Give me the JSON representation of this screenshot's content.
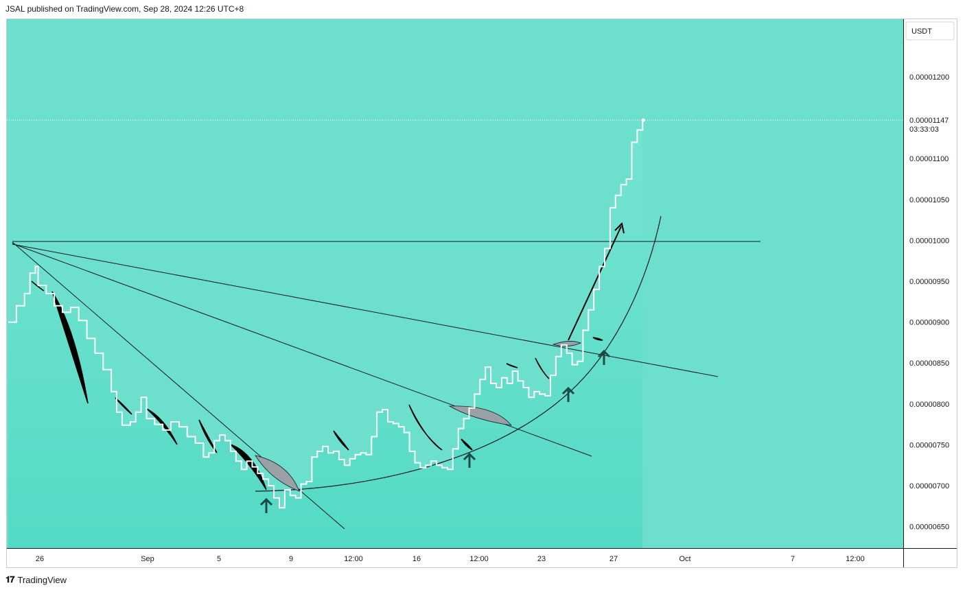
{
  "header": {
    "publisher": "JSAL",
    "text": "JSAL published on TradingView.com, Sep 28, 2024 12:26 UTC+8"
  },
  "footer": {
    "logo_text": "TradingView"
  },
  "chart_data": {
    "type": "line",
    "currency": "USDT",
    "last_price": "0.00001147",
    "countdown": "03:33:03",
    "ylim": [
      6e-06,
      1.23e-05
    ],
    "y_ticks": [
      "0.00001200",
      "0.00001100",
      "0.00001050",
      "0.00001000",
      "0.00000950",
      "0.00000900",
      "0.00000850",
      "0.00000800",
      "0.00000750",
      "0.00000700",
      "0.00000650"
    ],
    "x_ticks": [
      "26",
      "Sep",
      "5",
      "9",
      "12:00",
      "16",
      "12:00",
      "23",
      "27",
      "Oct",
      "7",
      "12:00"
    ],
    "series": [
      {
        "values": [
          [
            0,
            9e-06
          ],
          [
            3,
            9.2e-06
          ],
          [
            6,
            9.35e-06
          ],
          [
            8,
            9.6e-06
          ],
          [
            10,
            9.68e-06
          ],
          [
            11,
            9.45e-06
          ],
          [
            14,
            9.35e-06
          ],
          [
            17,
            9.2e-06
          ],
          [
            20,
            9.12e-06
          ],
          [
            23,
            9.18e-06
          ],
          [
            26,
            9.02e-06
          ],
          [
            29,
            8.8e-06
          ],
          [
            32,
            8.62e-06
          ],
          [
            35,
            8.42e-06
          ],
          [
            38,
            8.15e-06
          ],
          [
            40,
            7.9e-06
          ],
          [
            42,
            7.74e-06
          ],
          [
            45,
            7.78e-06
          ],
          [
            47,
            7.9e-06
          ],
          [
            49,
            8.08e-06
          ],
          [
            51,
            7.82e-06
          ],
          [
            54,
            7.75e-06
          ],
          [
            57,
            7.68e-06
          ],
          [
            60,
            7.78e-06
          ],
          [
            63,
            7.72e-06
          ],
          [
            66,
            7.6e-06
          ],
          [
            69,
            7.52e-06
          ],
          [
            72,
            7.35e-06
          ],
          [
            74,
            7.4e-06
          ],
          [
            76,
            7.55e-06
          ],
          [
            78,
            7.62e-06
          ],
          [
            80,
            7.55e-06
          ],
          [
            82,
            7.42e-06
          ],
          [
            84,
            7.3e-06
          ],
          [
            86,
            7.2e-06
          ],
          [
            88,
            7.3e-06
          ],
          [
            90,
            7.23e-06
          ],
          [
            92,
            7.15e-06
          ],
          [
            94,
            7.08e-06
          ],
          [
            96,
            7e-06
          ],
          [
            98,
            6.85e-06
          ],
          [
            100,
            6.73e-06
          ],
          [
            102,
            6.95e-06
          ],
          [
            104,
            6.88e-06
          ],
          [
            106,
            6.85e-06
          ],
          [
            108,
            7.02e-06
          ],
          [
            110,
            7.05e-06
          ],
          [
            112,
            7.35e-06
          ],
          [
            114,
            7.42e-06
          ],
          [
            116,
            7.48e-06
          ],
          [
            118,
            7.4e-06
          ],
          [
            120,
            7.42e-06
          ],
          [
            122,
            7.32e-06
          ],
          [
            124,
            7.25e-06
          ],
          [
            126,
            7.33e-06
          ],
          [
            128,
            7.38e-06
          ],
          [
            130,
            7.4e-06
          ],
          [
            132,
            7.38e-06
          ],
          [
            134,
            7.6e-06
          ],
          [
            136,
            7.9e-06
          ],
          [
            138,
            7.93e-06
          ],
          [
            140,
            7.78e-06
          ],
          [
            142,
            7.76e-06
          ],
          [
            144,
            7.72e-06
          ],
          [
            146,
            7.65e-06
          ],
          [
            148,
            7.42e-06
          ],
          [
            150,
            7.28e-06
          ],
          [
            152,
            7.22e-06
          ],
          [
            154,
            7.25e-06
          ],
          [
            156,
            7.3e-06
          ],
          [
            158,
            7.25e-06
          ],
          [
            160,
            7.22e-06
          ],
          [
            162,
            7.2e-06
          ],
          [
            164,
            7.45e-06
          ],
          [
            166,
            7.7e-06
          ],
          [
            168,
            7.82e-06
          ],
          [
            170,
            7.95e-06
          ],
          [
            172,
            8.12e-06
          ],
          [
            174,
            8.3e-06
          ],
          [
            176,
            8.45e-06
          ],
          [
            178,
            8.25e-06
          ],
          [
            180,
            8.2e-06
          ],
          [
            182,
            8.32e-06
          ],
          [
            184,
            8.25e-06
          ],
          [
            186,
            8.4e-06
          ],
          [
            188,
            8.28e-06
          ],
          [
            190,
            8.2e-06
          ],
          [
            192,
            8.08e-06
          ],
          [
            194,
            8.15e-06
          ],
          [
            196,
            8.12e-06
          ],
          [
            198,
            8.1e-06
          ],
          [
            200,
            8.35e-06
          ],
          [
            202,
            8.58e-06
          ],
          [
            204,
            8.72e-06
          ],
          [
            206,
            8.62e-06
          ],
          [
            208,
            8.48e-06
          ],
          [
            210,
            8.52e-06
          ],
          [
            212,
            8.9e-06
          ],
          [
            214,
            9.15e-06
          ],
          [
            216,
            9.4e-06
          ],
          [
            218,
            9.68e-06
          ],
          [
            220,
            9.9e-06
          ],
          [
            222,
            1.04e-05
          ],
          [
            224,
            1.055e-05
          ],
          [
            226,
            1.068e-05
          ],
          [
            228,
            1.075e-05
          ],
          [
            230,
            1.12e-05
          ],
          [
            232,
            1.135e-05
          ],
          [
            234,
            1.147e-05
          ]
        ]
      }
    ]
  }
}
